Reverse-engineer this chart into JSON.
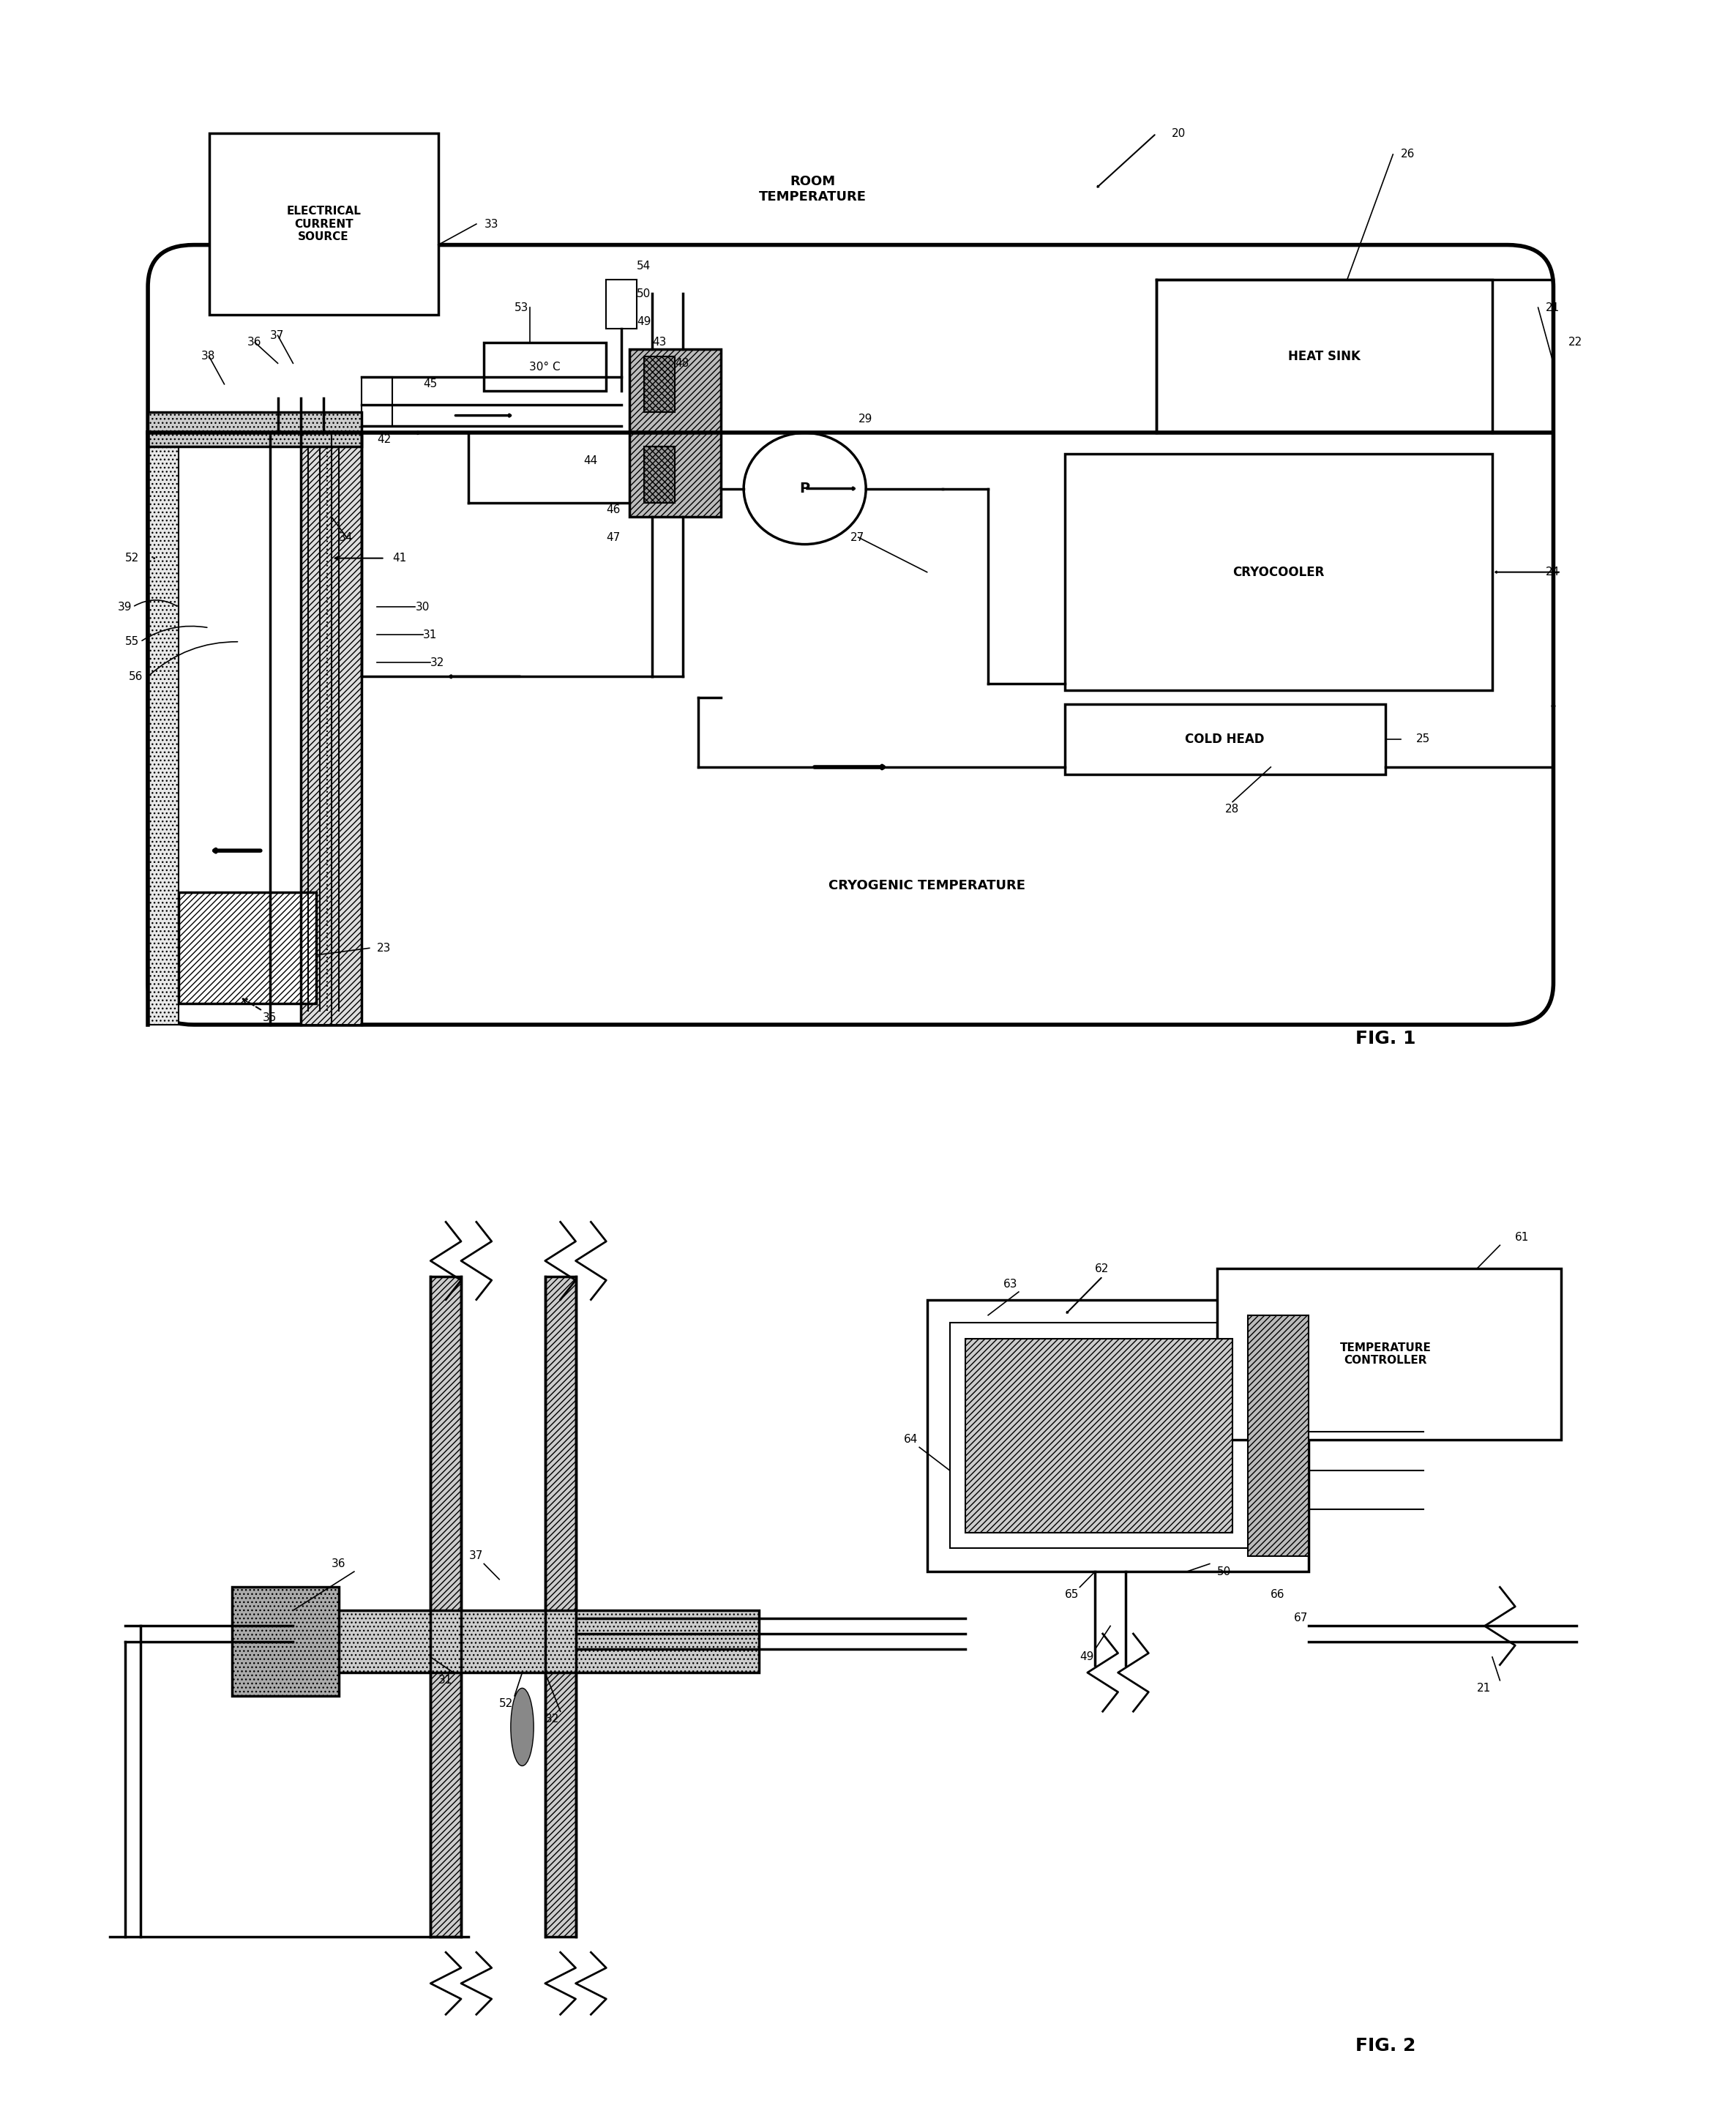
{
  "bg_color": "#ffffff",
  "fig1_title": "FIG. 1",
  "fig2_title": "FIG. 2",
  "labels": {
    "room_temp": "ROOM\nTEMPERATURE",
    "cryo_temp": "CRYOGENIC TEMPERATURE",
    "heat_sink": "HEAT SINK",
    "cryocooler": "CRYOCOOLER",
    "cold_head": "COLD HEAD",
    "elec_source": "ELECTRICAL\nCURRENT\nSOURCE",
    "temp_30": "30° C",
    "pump": "P",
    "temp_ctrl": "TEMPERATURE\nCONTROLLER"
  }
}
